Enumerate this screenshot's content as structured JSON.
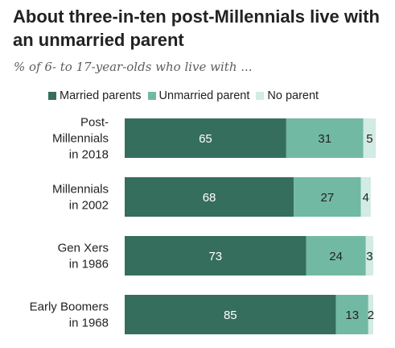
{
  "title": "About three-in-ten post-Millennials live with an unmarried parent",
  "subtitle": "% of 6- to 17-year-olds who live with ...",
  "chart_data": {
    "type": "bar",
    "orientation": "horizontal",
    "stacked": true,
    "categories": [
      [
        "Post-",
        "Millennials",
        "in 2018"
      ],
      [
        "Millennials",
        "in 2002"
      ],
      [
        "Gen Xers",
        "in 1986"
      ],
      [
        "Early Boomers",
        "in 1968"
      ]
    ],
    "series": [
      {
        "name": "Married parents",
        "color": "#356e5c",
        "label_color": "#ffffff",
        "values": [
          65,
          68,
          73,
          85
        ]
      },
      {
        "name": "Unmarried parent",
        "color": "#72b9a4",
        "label_color": "#222222",
        "values": [
          31,
          27,
          24,
          13
        ]
      },
      {
        "name": "No parent",
        "color": "#d2ebe4",
        "label_color": "#222222",
        "values": [
          5,
          4,
          3,
          2
        ]
      }
    ],
    "xlim": [
      0,
      100
    ],
    "grid": false,
    "legend_position": "top"
  }
}
